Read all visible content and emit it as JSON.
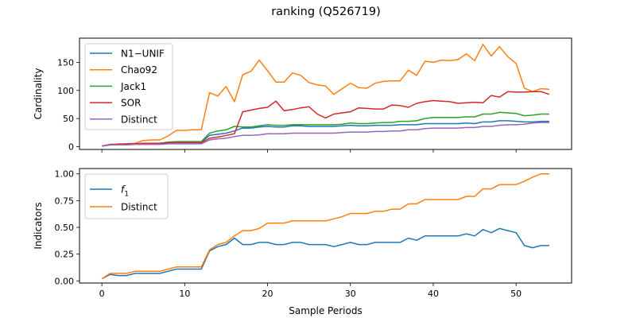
{
  "figure": {
    "title": "ranking (Q526719)",
    "xlabel": "Sample Periods"
  },
  "chart_data": [
    {
      "type": "line",
      "ylabel": "Cardinality",
      "xlim": [
        -2.7,
        56.7
      ],
      "ylim": [
        -5,
        193
      ],
      "xticks": [
        0,
        10,
        20,
        30,
        40,
        50
      ],
      "yticks": [
        0,
        50,
        100,
        150
      ],
      "ytick_labels": [
        "0",
        "50",
        "100",
        "150"
      ],
      "grid": false,
      "legend_position": "upper-left",
      "series": [
        {
          "name": "N1−UNIF",
          "color": "#1f77b4",
          "x": [
            0,
            1,
            2,
            3,
            4,
            5,
            6,
            7,
            8,
            9,
            10,
            11,
            12,
            13,
            14,
            15,
            16,
            17,
            18,
            19,
            20,
            21,
            22,
            23,
            24,
            25,
            26,
            27,
            28,
            29,
            30,
            31,
            32,
            33,
            34,
            35,
            36,
            37,
            38,
            39,
            40,
            41,
            42,
            43,
            44,
            45,
            46,
            47,
            48,
            49,
            50,
            51,
            52,
            53,
            54
          ],
          "y": [
            1,
            3,
            4,
            4,
            5,
            5,
            5,
            6,
            7,
            8,
            8,
            8,
            8,
            20,
            22,
            24,
            28,
            33,
            33,
            35,
            36,
            35,
            35,
            37,
            37,
            36,
            36,
            36,
            36,
            37,
            38,
            37,
            37,
            38,
            38,
            38,
            39,
            39,
            39,
            41,
            41,
            41,
            41,
            41,
            42,
            41,
            44,
            44,
            46,
            46,
            45,
            44,
            44,
            45,
            45
          ]
        },
        {
          "name": "Chao92",
          "color": "#ff7f0e",
          "x": [
            0,
            1,
            2,
            3,
            4,
            5,
            6,
            7,
            8,
            9,
            10,
            11,
            12,
            13,
            14,
            15,
            16,
            17,
            18,
            19,
            20,
            21,
            22,
            23,
            24,
            25,
            26,
            27,
            28,
            29,
            30,
            31,
            32,
            33,
            34,
            35,
            36,
            37,
            38,
            39,
            40,
            41,
            42,
            43,
            44,
            45,
            46,
            47,
            48,
            49,
            50,
            51,
            52,
            53,
            54
          ],
          "y": [
            1,
            3,
            5,
            5,
            6,
            11,
            12,
            12,
            19,
            29,
            29,
            30,
            30,
            96,
            90,
            107,
            80,
            128,
            134,
            154,
            135,
            115,
            115,
            131,
            127,
            114,
            110,
            108,
            93,
            103,
            113,
            105,
            104,
            113,
            116,
            117,
            117,
            136,
            127,
            152,
            150,
            154,
            153,
            155,
            165,
            153,
            182,
            161,
            178,
            160,
            148,
            104,
            98,
            103,
            102
          ]
        },
        {
          "name": "Jack1",
          "color": "#2ca02c",
          "x": [
            0,
            1,
            2,
            3,
            4,
            5,
            6,
            7,
            8,
            9,
            10,
            11,
            12,
            13,
            14,
            15,
            16,
            17,
            18,
            19,
            20,
            21,
            22,
            23,
            24,
            25,
            26,
            27,
            28,
            29,
            30,
            31,
            32,
            33,
            34,
            35,
            36,
            37,
            38,
            39,
            40,
            41,
            42,
            43,
            44,
            45,
            46,
            47,
            48,
            49,
            50,
            51,
            52,
            53,
            54
          ],
          "y": [
            1,
            4,
            4,
            4,
            5,
            6,
            6,
            6,
            8,
            9,
            9,
            9,
            9,
            24,
            28,
            30,
            36,
            35,
            35,
            37,
            39,
            38,
            38,
            39,
            39,
            39,
            39,
            39,
            39,
            40,
            42,
            41,
            41,
            42,
            43,
            43,
            45,
            45,
            46,
            50,
            52,
            52,
            52,
            52,
            53,
            53,
            58,
            58,
            61,
            60,
            59,
            55,
            56,
            58,
            58
          ]
        },
        {
          "name": "SOR",
          "color": "#d62728",
          "x": [
            0,
            1,
            2,
            3,
            4,
            5,
            6,
            7,
            8,
            9,
            10,
            11,
            12,
            13,
            14,
            15,
            16,
            17,
            18,
            19,
            20,
            21,
            22,
            23,
            24,
            25,
            26,
            27,
            28,
            29,
            30,
            31,
            32,
            33,
            34,
            35,
            36,
            37,
            38,
            39,
            40,
            41,
            42,
            43,
            44,
            45,
            46,
            47,
            48,
            49,
            50,
            51,
            52,
            53,
            54
          ],
          "y": [
            1,
            4,
            4,
            5,
            5,
            6,
            6,
            6,
            7,
            7,
            7,
            7,
            7,
            15,
            17,
            20,
            23,
            62,
            65,
            68,
            70,
            81,
            64,
            66,
            69,
            71,
            58,
            51,
            58,
            60,
            62,
            69,
            68,
            67,
            67,
            74,
            73,
            70,
            77,
            80,
            82,
            81,
            80,
            77,
            78,
            79,
            78,
            91,
            88,
            98,
            97,
            97,
            98,
            98,
            93
          ]
        },
        {
          "name": "Distinct",
          "color": "#9467bd",
          "x": [
            0,
            1,
            2,
            3,
            4,
            5,
            6,
            7,
            8,
            9,
            10,
            11,
            12,
            13,
            14,
            15,
            16,
            17,
            18,
            19,
            20,
            21,
            22,
            23,
            24,
            25,
            26,
            27,
            28,
            29,
            30,
            31,
            32,
            33,
            34,
            35,
            36,
            37,
            38,
            39,
            40,
            41,
            42,
            43,
            44,
            45,
            46,
            47,
            48,
            49,
            50,
            51,
            52,
            53,
            54
          ],
          "y": [
            1,
            3,
            3,
            3,
            4,
            4,
            4,
            4,
            5,
            5,
            5,
            5,
            5,
            12,
            14,
            15,
            18,
            20,
            20,
            21,
            23,
            23,
            23,
            24,
            24,
            24,
            24,
            24,
            24,
            25,
            26,
            26,
            26,
            27,
            27,
            28,
            28,
            30,
            30,
            32,
            33,
            33,
            33,
            33,
            34,
            34,
            36,
            36,
            38,
            39,
            39,
            40,
            42,
            43,
            43
          ]
        }
      ]
    },
    {
      "type": "line",
      "ylabel": "Indicators",
      "xlim": [
        -2.7,
        56.7
      ],
      "ylim": [
        -0.02,
        1.05
      ],
      "xticks": [
        0,
        10,
        20,
        30,
        40,
        50
      ],
      "xtick_labels": [
        "0",
        "10",
        "20",
        "30",
        "40",
        "50"
      ],
      "yticks": [
        0,
        0.25,
        0.5,
        0.75,
        1.0
      ],
      "ytick_labels": [
        "0.00",
        "0.25",
        "0.50",
        "0.75",
        "1.00"
      ],
      "grid": false,
      "legend_position": "upper-left",
      "series": [
        {
          "name": "f",
          "name_subscript": "1",
          "color": "#1f77b4",
          "x": [
            0,
            1,
            2,
            3,
            4,
            5,
            6,
            7,
            8,
            9,
            10,
            11,
            12,
            13,
            14,
            15,
            16,
            17,
            18,
            19,
            20,
            21,
            22,
            23,
            24,
            25,
            26,
            27,
            28,
            29,
            30,
            31,
            32,
            33,
            34,
            35,
            36,
            37,
            38,
            39,
            40,
            41,
            42,
            43,
            44,
            45,
            46,
            47,
            48,
            49,
            50,
            51,
            52,
            53,
            54
          ],
          "y": [
            0.02,
            0.06,
            0.05,
            0.05,
            0.07,
            0.07,
            0.07,
            0.07,
            0.09,
            0.11,
            0.11,
            0.11,
            0.11,
            0.28,
            0.32,
            0.34,
            0.4,
            0.34,
            0.34,
            0.36,
            0.36,
            0.34,
            0.34,
            0.36,
            0.36,
            0.34,
            0.34,
            0.34,
            0.32,
            0.34,
            0.36,
            0.34,
            0.34,
            0.36,
            0.36,
            0.36,
            0.36,
            0.4,
            0.38,
            0.42,
            0.42,
            0.42,
            0.42,
            0.42,
            0.44,
            0.42,
            0.48,
            0.45,
            0.49,
            0.47,
            0.45,
            0.33,
            0.31,
            0.33,
            0.33
          ]
        },
        {
          "name": "Distinct",
          "color": "#ff7f0e",
          "x": [
            0,
            1,
            2,
            3,
            4,
            5,
            6,
            7,
            8,
            9,
            10,
            11,
            12,
            13,
            14,
            15,
            16,
            17,
            18,
            19,
            20,
            21,
            22,
            23,
            24,
            25,
            26,
            27,
            28,
            29,
            30,
            31,
            32,
            33,
            34,
            35,
            36,
            37,
            38,
            39,
            40,
            41,
            42,
            43,
            44,
            45,
            46,
            47,
            48,
            49,
            50,
            51,
            52,
            53,
            54
          ],
          "y": [
            0.02,
            0.07,
            0.07,
            0.07,
            0.09,
            0.09,
            0.09,
            0.09,
            0.11,
            0.13,
            0.13,
            0.13,
            0.13,
            0.29,
            0.34,
            0.36,
            0.42,
            0.47,
            0.47,
            0.49,
            0.54,
            0.54,
            0.54,
            0.56,
            0.56,
            0.56,
            0.56,
            0.56,
            0.58,
            0.6,
            0.63,
            0.63,
            0.63,
            0.65,
            0.65,
            0.67,
            0.67,
            0.72,
            0.72,
            0.76,
            0.76,
            0.76,
            0.76,
            0.76,
            0.79,
            0.79,
            0.86,
            0.86,
            0.9,
            0.9,
            0.9,
            0.93,
            0.97,
            1.0,
            1.0
          ]
        }
      ]
    }
  ]
}
